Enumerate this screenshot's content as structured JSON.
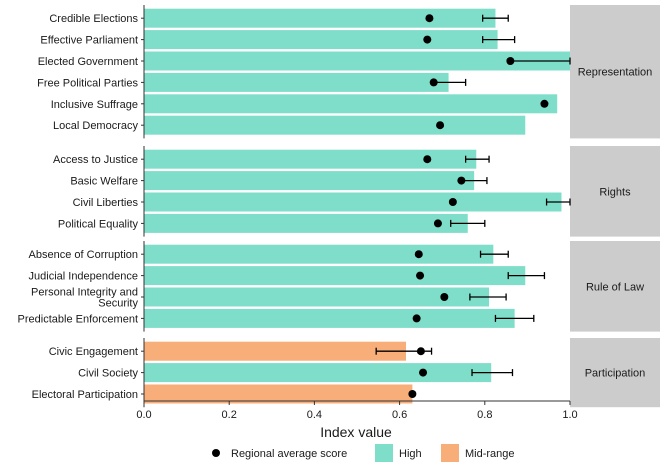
{
  "chart_data": {
    "type": "bar",
    "orientation": "horizontal",
    "xlabel": "Index value",
    "ylabel": "",
    "xlim": [
      0,
      1
    ],
    "xticks": [
      "0.0",
      "0.2",
      "0.4",
      "0.6",
      "0.8",
      "1.0"
    ],
    "grid": false,
    "colors": {
      "High": "#7fdec9",
      "Mid-range": "#f7ae79",
      "point": "#000000",
      "strip": "#cccccc"
    },
    "legend": {
      "placement": "bottom",
      "point_label": "Regional average score",
      "fill_labels": [
        "High",
        "Mid-range"
      ]
    },
    "facets": [
      {
        "name": "Representation",
        "items": [
          {
            "label": "Credible Elections",
            "value": 0.825,
            "band": "High",
            "avg": 0.67,
            "err": [
              0.795,
              0.855
            ]
          },
          {
            "label": "Effective Parliament",
            "value": 0.83,
            "band": "High",
            "avg": 0.665,
            "err": [
              0.795,
              0.87
            ]
          },
          {
            "label": "Elected Government",
            "value": 1.0,
            "band": "High",
            "avg": 0.86,
            "err": [
              0.86,
              1.0
            ]
          },
          {
            "label": "Free Political Parties",
            "value": 0.715,
            "band": "High",
            "avg": 0.68,
            "err": [
              0.68,
              0.755
            ]
          },
          {
            "label": "Inclusive Suffrage",
            "value": 0.97,
            "band": "High",
            "avg": 0.94,
            "err": null
          },
          {
            "label": "Local Democracy",
            "value": 0.895,
            "band": "High",
            "avg": 0.695,
            "err": null
          }
        ]
      },
      {
        "name": "Rights",
        "items": [
          {
            "label": "Access to Justice",
            "value": 0.78,
            "band": "High",
            "avg": 0.665,
            "err": [
              0.755,
              0.81
            ]
          },
          {
            "label": "Basic Welfare",
            "value": 0.775,
            "band": "High",
            "avg": 0.745,
            "err": [
              0.745,
              0.805
            ]
          },
          {
            "label": "Civil Liberties",
            "value": 0.98,
            "band": "High",
            "avg": 0.725,
            "err": [
              0.945,
              1.0
            ]
          },
          {
            "label": "Political Equality",
            "value": 0.76,
            "band": "High",
            "avg": 0.69,
            "err": [
              0.72,
              0.8
            ]
          }
        ]
      },
      {
        "name": "Rule of Law",
        "items": [
          {
            "label": "Absence of Corruption",
            "value": 0.82,
            "band": "High",
            "avg": 0.645,
            "err": [
              0.79,
              0.855
            ]
          },
          {
            "label": "Judicial Independence",
            "value": 0.895,
            "band": "High",
            "avg": 0.648,
            "err": [
              0.855,
              0.94
            ]
          },
          {
            "label": "Personal Integrity and\nSecurity",
            "value": 0.81,
            "band": "High",
            "avg": 0.705,
            "err": [
              0.765,
              0.85
            ]
          },
          {
            "label": "Predictable Enforcement",
            "value": 0.87,
            "band": "High",
            "avg": 0.64,
            "err": [
              0.825,
              0.915
            ]
          }
        ]
      },
      {
        "name": "Participation",
        "items": [
          {
            "label": "Civic Engagement",
            "value": 0.615,
            "band": "Mid-range",
            "avg": 0.65,
            "err": [
              0.545,
              0.675
            ]
          },
          {
            "label": "Civil Society",
            "value": 0.815,
            "band": "High",
            "avg": 0.655,
            "err": [
              0.77,
              0.865
            ]
          },
          {
            "label": "Electoral Participation",
            "value": 0.63,
            "band": "Mid-range",
            "avg": 0.63,
            "err": null
          }
        ]
      }
    ]
  }
}
